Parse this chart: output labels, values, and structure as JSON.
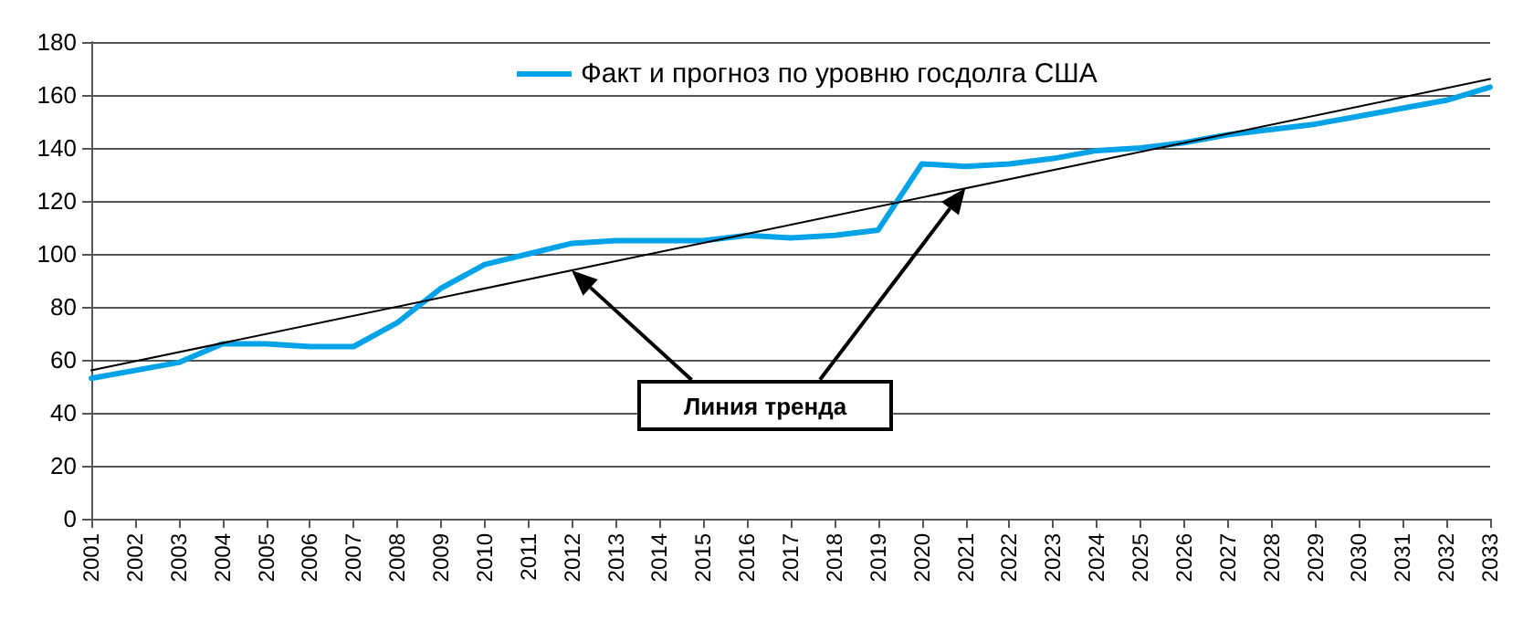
{
  "chart_data": {
    "type": "line",
    "categories": [
      "2001",
      "2002",
      "2003",
      "2004",
      "2005",
      "2006",
      "2007",
      "2008",
      "2009",
      "2010",
      "2011",
      "2012",
      "2013",
      "2014",
      "2015",
      "2016",
      "2017",
      "2018",
      "2019",
      "2020",
      "2021",
      "2022",
      "2023",
      "2024",
      "2025",
      "2026",
      "2027",
      "2028",
      "2029",
      "2030",
      "2031",
      "2032",
      "2033"
    ],
    "series": [
      {
        "name": "Факт и прогноз по уровню госдолга США",
        "color": "#00a2e8",
        "values": [
          53,
          56,
          59,
          66,
          66,
          65,
          65,
          74,
          87,
          96,
          100,
          104,
          105,
          105,
          105,
          107,
          106,
          107,
          109,
          134,
          133,
          134,
          136,
          139,
          140,
          142,
          145,
          147,
          149,
          152,
          155,
          158,
          163
        ]
      },
      {
        "color": "#000000",
        "values": [
          56,
          null,
          null,
          null,
          null,
          null,
          null,
          null,
          null,
          null,
          null,
          null,
          null,
          null,
          null,
          null,
          null,
          null,
          null,
          null,
          null,
          null,
          null,
          null,
          null,
          null,
          null,
          null,
          null,
          null,
          null,
          null,
          166
        ]
      }
    ],
    "ylim": [
      0,
      180
    ],
    "yticks": [
      0,
      20,
      40,
      60,
      80,
      100,
      120,
      140,
      160,
      180
    ],
    "grid": "y",
    "legend": "top",
    "marker": "none",
    "line_style": "solid",
    "annotations": [
      "Линия тренда"
    ]
  }
}
